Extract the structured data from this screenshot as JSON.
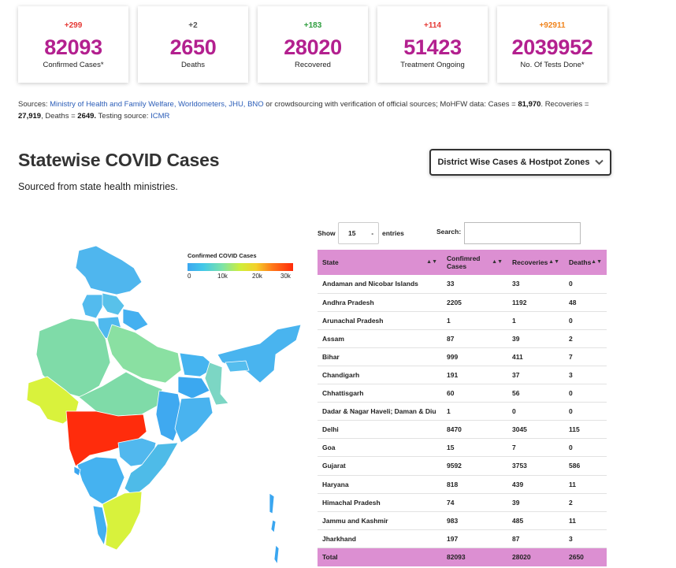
{
  "stats": [
    {
      "delta": "+299",
      "delta_color": "#e53935",
      "value": "82093",
      "label": "Confirmed Cases*"
    },
    {
      "delta": "+2",
      "delta_color": "#555555",
      "value": "2650",
      "label": "Deaths"
    },
    {
      "delta": "+183",
      "delta_color": "#2e9e3e",
      "value": "28020",
      "label": "Recovered"
    },
    {
      "delta": "+114",
      "delta_color": "#e53935",
      "value": "51423",
      "label": "Treatment Ongoing"
    },
    {
      "delta": "+92911",
      "delta_color": "#f0831b",
      "value": "2039952",
      "label": "No. Of Tests Done*"
    }
  ],
  "sources": {
    "prefix": "Sources: ",
    "links_1": "Ministry of Health and Family Welfare, Worldometers, JHU, BNO",
    "middle": " or crowdsourcing with verification of official sources; MoHFW data: Cases = ",
    "cases": "81,970",
    "recoveries_label": ". Recoveries = ",
    "recoveries": "27,919",
    "deaths_label": ", Deaths = ",
    "deaths": "2649.",
    "testing_label": " Testing source: ",
    "testing_link": "ICMR"
  },
  "section": {
    "title": "Statewise COVID Cases",
    "subtitle": "Sourced from state health ministries.",
    "district_button": "District Wise Cases & Hostpot Zones"
  },
  "map": {
    "legend_title": "Confirmed COVID Cases",
    "legend_ticks": [
      "0",
      "10k",
      "20k",
      "30k"
    ],
    "colors": {
      "low": "#3ca7f0",
      "mid_low": "#7de3a8",
      "mid": "#d6f03a",
      "high": "#ff2a0a"
    }
  },
  "table_controls": {
    "show": "Show",
    "page_size": "15",
    "page_size_arrow": "-",
    "entries": "entries",
    "search_label": "Search:",
    "search_value": ""
  },
  "table": {
    "headers": [
      "State",
      "Confimred Cases",
      "Recoveries",
      "Deaths"
    ],
    "rows": [
      [
        "Andaman and Nicobar Islands",
        "33",
        "33",
        "0"
      ],
      [
        "Andhra Pradesh",
        "2205",
        "1192",
        "48"
      ],
      [
        "Arunachal Pradesh",
        "1",
        "1",
        "0"
      ],
      [
        "Assam",
        "87",
        "39",
        "2"
      ],
      [
        "Bihar",
        "999",
        "411",
        "7"
      ],
      [
        "Chandigarh",
        "191",
        "37",
        "3"
      ],
      [
        "Chhattisgarh",
        "60",
        "56",
        "0"
      ],
      [
        "Dadar & Nagar Haveli; Daman & Diu",
        "1",
        "0",
        "0"
      ],
      [
        "Delhi",
        "8470",
        "3045",
        "115"
      ],
      [
        "Goa",
        "15",
        "7",
        "0"
      ],
      [
        "Gujarat",
        "9592",
        "3753",
        "586"
      ],
      [
        "Haryana",
        "818",
        "439",
        "11"
      ],
      [
        "Himachal Pradesh",
        "74",
        "39",
        "2"
      ],
      [
        "Jammu and Kashmir",
        "983",
        "485",
        "11"
      ],
      [
        "Jharkhand",
        "197",
        "87",
        "3"
      ]
    ],
    "total": [
      "Total",
      "82093",
      "28020",
      "2650"
    ]
  }
}
